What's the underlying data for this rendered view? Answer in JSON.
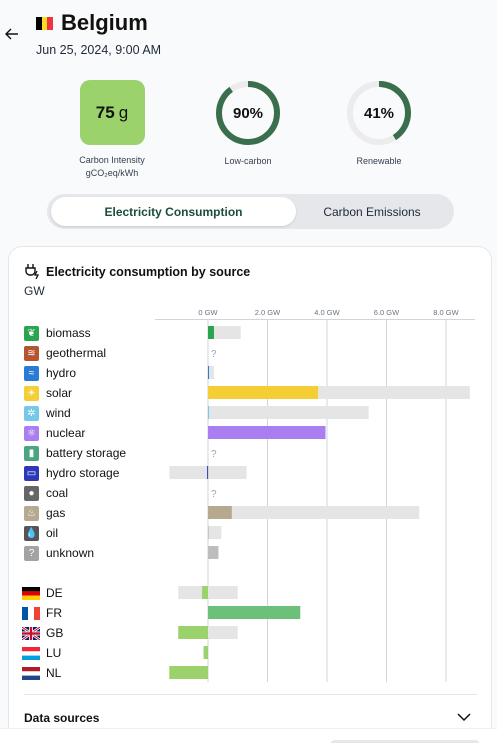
{
  "header": {
    "country": "Belgium",
    "datetime": "Jun 25, 2024, 9:00 AM",
    "flag_colors": [
      "#000000",
      "#fdda24",
      "#ef3340"
    ]
  },
  "metrics": {
    "carbon_intensity": {
      "value": "75",
      "unit": "g",
      "label_line1": "Carbon Intensity",
      "label_line2": "gCO₂eq/kWh",
      "color": "#9bd26b"
    },
    "low_carbon": {
      "value": "90%",
      "fraction": 0.9,
      "label": "Low-carbon",
      "color": "#3a6e4c"
    },
    "renewable": {
      "value": "41%",
      "fraction": 0.41,
      "label": "Renewable",
      "color": "#3a6e4c"
    }
  },
  "toggle": {
    "active": "Electricity Consumption",
    "inactive": "Carbon Emissions"
  },
  "chart_data": {
    "type": "bar",
    "title": "Electricity consumption by source",
    "unit": "GW",
    "x_ticks": [
      "0 GW",
      "2.0 GW",
      "4.0 GW",
      "6.0 GW",
      "8.0 GW"
    ],
    "x_range": [
      -1.3,
      8.7
    ],
    "sources": [
      {
        "name": "biomass",
        "value": 0.2,
        "capacity": 1.1,
        "color": "#2aa44f",
        "icon_bg": "#2aa44f",
        "icon": "leaf-icon"
      },
      {
        "name": "geothermal",
        "value": null,
        "capacity": null,
        "missing": "?",
        "color": "#b45530",
        "icon_bg": "#b45530",
        "icon": "heat-waves-icon"
      },
      {
        "name": "hydro",
        "value": 0.0,
        "capacity": 0.2,
        "color": "#2a7bd4",
        "icon_bg": "#2a7bd4",
        "icon": "water-waves-icon"
      },
      {
        "name": "solar",
        "value": 3.7,
        "capacity": 8.8,
        "color": "#f5cd34",
        "icon_bg": "#f5cd34",
        "icon": "sun-icon"
      },
      {
        "name": "wind",
        "value": 0.02,
        "capacity": 5.4,
        "color": "#75c8e8",
        "icon_bg": "#75c8e8",
        "icon": "wind-icon"
      },
      {
        "name": "nuclear",
        "value": 3.95,
        "capacity": 3.95,
        "color": "#a97ef0",
        "icon_bg": "#a97ef0",
        "icon": "atom-icon"
      },
      {
        "name": "battery storage",
        "value": null,
        "capacity": null,
        "missing": "?",
        "color": "#4aa680",
        "icon_bg": "#4aa680",
        "icon": "battery-icon"
      },
      {
        "name": "hydro storage",
        "value": -0.03,
        "capacity": 1.3,
        "capacity_neg": -1.3,
        "color": "#2c38b8",
        "icon_bg": "#2c38b8",
        "icon": "hydro-storage-icon"
      },
      {
        "name": "coal",
        "value": null,
        "capacity": null,
        "missing": "?",
        "color": "#666666",
        "icon_bg": "#666666",
        "icon": "coal-icon"
      },
      {
        "name": "gas",
        "value": 0.8,
        "capacity": 7.1,
        "color": "#b6a990",
        "icon_bg": "#b6a990",
        "icon": "gas-flame-icon"
      },
      {
        "name": "oil",
        "value": 0.0,
        "capacity": 0.45,
        "color": "#c7c7c7",
        "icon_bg": "#555555",
        "icon": "oil-drop-icon"
      },
      {
        "name": "unknown",
        "value": 0.35,
        "capacity": 0.35,
        "color": "#bdbdbd",
        "icon_bg": "#a3a3a3",
        "icon": "question-icon"
      }
    ],
    "exchanges": [
      {
        "name": "DE",
        "value": -0.2,
        "capacity": 1.0,
        "capacity_neg": -1.0,
        "color": "#9bd26b",
        "flag": "flag-de-icon"
      },
      {
        "name": "FR",
        "value": 3.1,
        "capacity": 3.1,
        "color": "#6cc07a",
        "flag": "flag-fr-icon"
      },
      {
        "name": "GB",
        "value": -1.0,
        "capacity": 1.0,
        "capacity_neg": -1.0,
        "color": "#9bd26b",
        "flag": "flag-gb-icon"
      },
      {
        "name": "LU",
        "value": -0.15,
        "capacity": 0.0,
        "capacity_neg": -0.15,
        "color": "#9bd26b",
        "flag": "flag-lu-icon"
      },
      {
        "name": "NL",
        "value": -1.3,
        "capacity": 0.0,
        "capacity_neg": -1.3,
        "color": "#9bd26b",
        "flag": "flag-nl-icon"
      }
    ],
    "grid": true
  },
  "footer": {
    "data_sources": "Data sources"
  }
}
